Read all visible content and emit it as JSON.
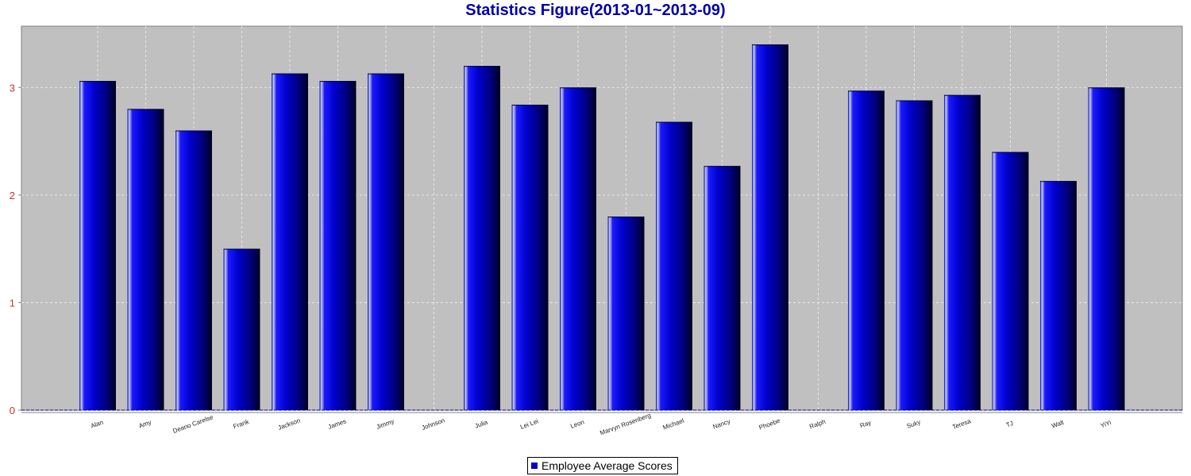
{
  "chart_data": {
    "type": "bar",
    "title": "Statistics Figure(2013-01~2013-09)",
    "categories": [
      "Alan",
      "Amy",
      "Deano Carelse",
      "Frank",
      "Jackson",
      "James",
      "Jimmy",
      "Johnson",
      "Julia",
      "Lei Lei",
      "Leon",
      "Marvyn Rosenberg",
      "Michael",
      "Nancy",
      "Phoebe",
      "Ralph",
      "Ray",
      "Suky",
      "Teresa",
      "TJ",
      "Walt",
      "YiYi"
    ],
    "series": [
      {
        "name": "Employee Average Scores",
        "values": [
          3.06,
          2.8,
          2.6,
          1.5,
          3.13,
          3.06,
          3.13,
          0,
          3.2,
          2.84,
          3.0,
          1.8,
          2.68,
          2.27,
          3.4,
          0,
          2.97,
          2.88,
          2.93,
          2.4,
          2.13,
          3.0
        ]
      }
    ],
    "xlabel": "",
    "ylabel": "",
    "ylim": [
      0,
      3.57
    ],
    "yticks": [
      0,
      1,
      2,
      3
    ],
    "grid": true,
    "legend_position": "bottom-center"
  },
  "colors": {
    "title": "#0000aa",
    "plot_background": "#c0c0c0",
    "bar": "#0000cc",
    "tick_label": "#cc3333",
    "gridline": "#ffffff"
  }
}
